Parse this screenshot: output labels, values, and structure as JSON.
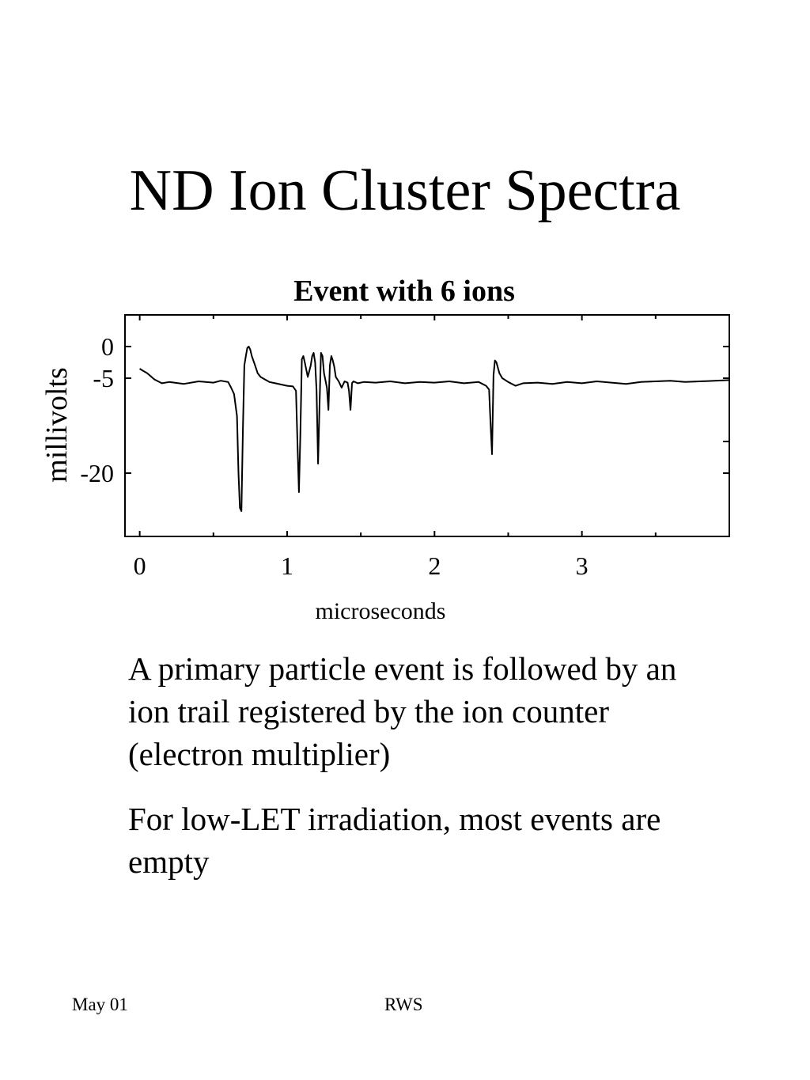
{
  "slide": {
    "title": "ND Ion Cluster Spectra",
    "paragraphs": [
      "A primary particle event is followed by an ion trail registered by the ion counter (electron multiplier)",
      "For low-LET irradiation, most events are empty"
    ],
    "footer_left": "May 01",
    "footer_center": "RWS"
  },
  "chart_data": {
    "type": "line",
    "title": "Event with 6 ions",
    "xlabel": "microseconds",
    "ylabel": "millivolts",
    "x_ticks": [
      0,
      1,
      2,
      3
    ],
    "y_ticks": [
      0,
      -5,
      -20
    ],
    "xlim": [
      -0.1,
      4.0
    ],
    "ylim": [
      -30,
      5
    ],
    "grid": false,
    "legend": "none",
    "line_color": "#000000",
    "baseline_mV": -5.5,
    "series": [
      {
        "x": [
          0.0,
          0.02,
          0.05,
          0.1,
          0.15,
          0.2,
          0.3,
          0.4,
          0.5,
          0.55,
          0.6,
          0.62,
          0.64,
          0.66,
          0.67,
          0.68,
          0.69,
          0.7,
          0.71,
          0.72,
          0.73,
          0.74,
          0.75,
          0.76,
          0.78,
          0.8,
          0.82,
          0.85,
          0.88,
          0.92,
          0.96,
          1.0,
          1.04,
          1.06,
          1.07,
          1.08,
          1.09,
          1.1,
          1.11,
          1.12,
          1.14,
          1.16,
          1.17,
          1.18,
          1.19,
          1.2,
          1.21,
          1.22,
          1.23,
          1.24,
          1.25,
          1.27,
          1.28,
          1.29,
          1.3,
          1.31,
          1.32,
          1.33,
          1.35,
          1.37,
          1.39,
          1.41,
          1.42,
          1.43,
          1.44,
          1.45,
          1.48,
          1.52,
          1.6,
          1.7,
          1.8,
          1.9,
          2.0,
          2.1,
          2.2,
          2.3,
          2.35,
          2.37,
          2.38,
          2.39,
          2.4,
          2.41,
          2.42,
          2.44,
          2.46,
          2.5,
          2.55,
          2.6,
          2.7,
          2.8,
          2.9,
          3.0,
          3.1,
          3.2,
          3.3,
          3.4,
          3.5,
          3.6,
          3.7,
          3.8,
          3.9,
          4.0
        ],
        "y": [
          -3.5,
          -3.8,
          -4.2,
          -5.2,
          -5.8,
          -5.6,
          -5.9,
          -5.5,
          -5.7,
          -5.4,
          -5.6,
          -6.5,
          -7.5,
          -11,
          -20,
          -25.5,
          -26,
          -13,
          -3,
          -1.5,
          -0.2,
          0,
          -0.5,
          -1.5,
          -2.8,
          -4.2,
          -4.8,
          -5.2,
          -5.6,
          -5.8,
          -6.0,
          -6.2,
          -6.3,
          -7,
          -15,
          -23,
          -14,
          -2,
          -1.5,
          -2.5,
          -4.8,
          -3,
          -1.5,
          -1.0,
          -2.5,
          -7,
          -18.5,
          -9,
          -1,
          -1.5,
          -4.2,
          -6.5,
          -10,
          -3,
          -1.5,
          -2.2,
          -3.2,
          -4.8,
          -5.5,
          -6.5,
          -5.5,
          -5.7,
          -7,
          -10,
          -5.8,
          -5.5,
          -5.8,
          -5.6,
          -5.7,
          -5.5,
          -5.8,
          -5.6,
          -5.7,
          -5.5,
          -5.8,
          -5.6,
          -6.2,
          -6.8,
          -12,
          -17,
          -4.5,
          -2.2,
          -2.5,
          -4.2,
          -5.0,
          -5.6,
          -6.2,
          -5.8,
          -5.7,
          -5.9,
          -5.6,
          -5.8,
          -5.5,
          -5.7,
          -5.9,
          -5.6,
          -5.5,
          -5.4,
          -5.6,
          -5.5,
          -5.4,
          -5.3
        ]
      }
    ]
  }
}
